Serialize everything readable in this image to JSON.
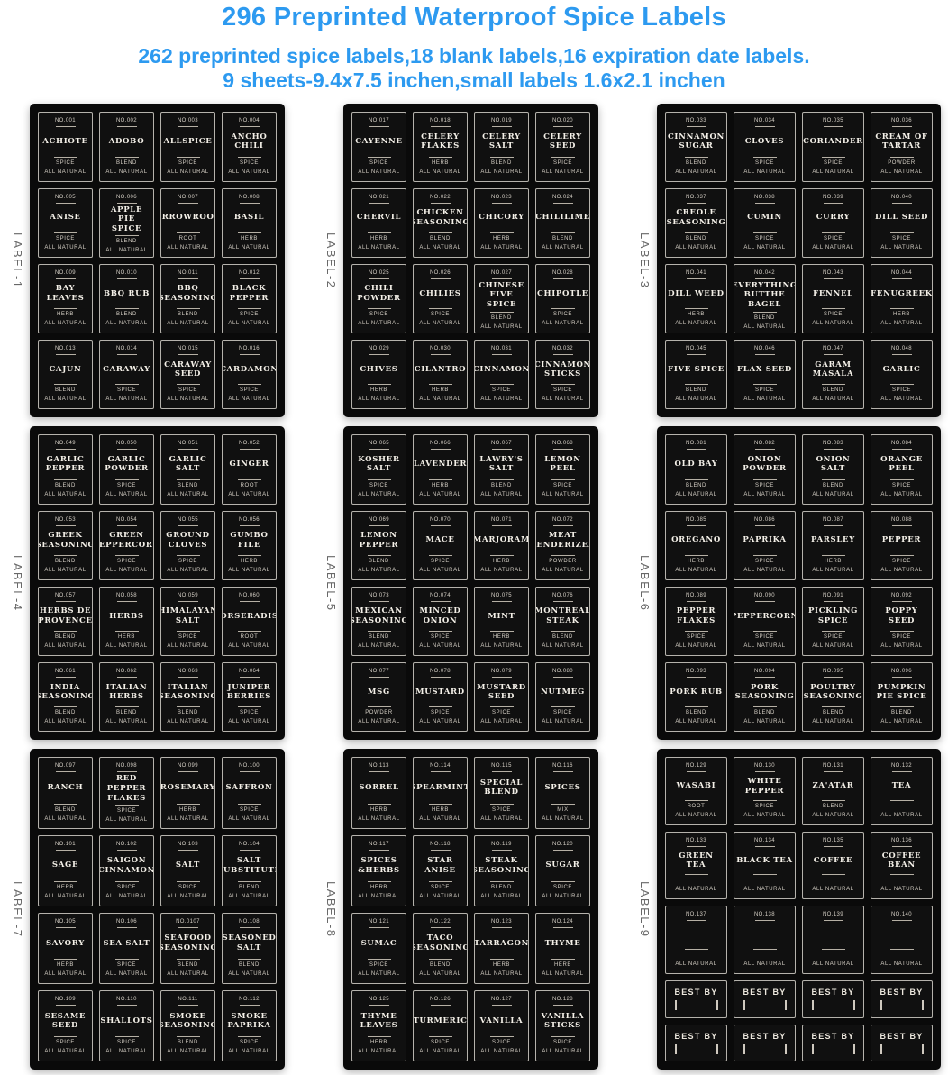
{
  "header": {
    "title": "296 Preprinted Waterproof Spice Labels",
    "subtitle1": "262 preprinted spice labels,18 blank labels,16 expiration date labels.",
    "subtitle2": "9 sheets-9.4x7.5 inchen,small labels 1.6x2.1 inchen"
  },
  "colors": {
    "title_blue": "#2d9af0",
    "sheet_black": "#0a0a0a",
    "label_text": "#f4f0e8"
  },
  "common": {
    "all_natural": "ALL NATURAL"
  },
  "sheets": [
    {
      "name": "LABEL-1",
      "labels": [
        {
          "no": "NO.001",
          "name": "ACHIOTE",
          "type": "SPICE"
        },
        {
          "no": "NO.002",
          "name": "ADOBO",
          "type": "BLEND"
        },
        {
          "no": "NO.003",
          "name": "ALLSPICE",
          "type": "SPICE"
        },
        {
          "no": "NO.004",
          "name": "ANCHO CHILI",
          "type": "SPICE"
        },
        {
          "no": "NO.005",
          "name": "ANISE",
          "type": "SPICE"
        },
        {
          "no": "NO.006",
          "name": "APPLE PIE SPICE",
          "type": "BLEND"
        },
        {
          "no": "NO.007",
          "name": "ARROWROOT",
          "type": "ROOT"
        },
        {
          "no": "NO.008",
          "name": "BASIL",
          "type": "HERB"
        },
        {
          "no": "NO.009",
          "name": "BAY LEAVES",
          "type": "HERB"
        },
        {
          "no": "NO.010",
          "name": "BBQ RUB",
          "type": "BLEND"
        },
        {
          "no": "NO.011",
          "name": "BBQ SEASONING",
          "type": "BLEND"
        },
        {
          "no": "NO.012",
          "name": "BLACK PEPPER",
          "type": "SPICE"
        },
        {
          "no": "NO.013",
          "name": "CAJUN",
          "type": "BLEND"
        },
        {
          "no": "NO.014",
          "name": "CARAWAY",
          "type": "SPICE"
        },
        {
          "no": "NO.015",
          "name": "CARAWAY SEED",
          "type": "SPICE"
        },
        {
          "no": "NO.016",
          "name": "CARDAMON",
          "type": "SPICE"
        }
      ]
    },
    {
      "name": "LABEL-2",
      "labels": [
        {
          "no": "NO.017",
          "name": "CAYENNE",
          "type": "SPICE"
        },
        {
          "no": "NO.018",
          "name": "CELERY FLAKES",
          "type": "HERB"
        },
        {
          "no": "NO.019",
          "name": "CELERY SALT",
          "type": "BLEND"
        },
        {
          "no": "NO.020",
          "name": "CELERY SEED",
          "type": "SPICE"
        },
        {
          "no": "NO.021",
          "name": "CHERVIL",
          "type": "HERB"
        },
        {
          "no": "NO.022",
          "name": "CHICKEN SEASONING",
          "type": "BLEND"
        },
        {
          "no": "NO.023",
          "name": "CHICORY",
          "type": "HERB"
        },
        {
          "no": "NO.024",
          "name": "CHILILIME",
          "type": "BLEND"
        },
        {
          "no": "NO.025",
          "name": "CHILI POWDER",
          "type": "SPICE"
        },
        {
          "no": "NO.026",
          "name": "CHILIES",
          "type": "SPICE"
        },
        {
          "no": "NO.027",
          "name": "CHINESE FIVE SPICE",
          "type": "BLEND"
        },
        {
          "no": "NO.028",
          "name": "CHIPOTLE",
          "type": "SPICE"
        },
        {
          "no": "NO.029",
          "name": "CHIVES",
          "type": "HERB"
        },
        {
          "no": "NO.030",
          "name": "CILANTRO",
          "type": "HERB"
        },
        {
          "no": "NO.031",
          "name": "CINNAMON",
          "type": "SPICE"
        },
        {
          "no": "NO.032",
          "name": "CINNAMON STICKS",
          "type": "SPICE"
        }
      ]
    },
    {
      "name": "LABEL-3",
      "labels": [
        {
          "no": "NO.033",
          "name": "CINNAMON SUGAR",
          "type": "BLEND"
        },
        {
          "no": "NO.034",
          "name": "CLOVES",
          "type": "SPICE"
        },
        {
          "no": "NO.035",
          "name": "CORIANDER",
          "type": "SPICE"
        },
        {
          "no": "NO.036",
          "name": "CREAM OF TARTAR",
          "type": "POWDER"
        },
        {
          "no": "NO.037",
          "name": "CREOLE SEASONING",
          "type": "BLEND"
        },
        {
          "no": "NO.038",
          "name": "CUMIN",
          "type": "SPICE"
        },
        {
          "no": "NO.039",
          "name": "CURRY",
          "type": "SPICE"
        },
        {
          "no": "NO.040",
          "name": "DILL SEED",
          "type": "SPICE"
        },
        {
          "no": "NO.041",
          "name": "DILL WEED",
          "type": "HERB"
        },
        {
          "no": "NO.042",
          "name": "EVERYTHING BUTTHE BAGEL",
          "type": "BLEND"
        },
        {
          "no": "NO.043",
          "name": "FENNEL",
          "type": "SPICE"
        },
        {
          "no": "NO.044",
          "name": "FENUGREEK",
          "type": "HERB"
        },
        {
          "no": "NO.045",
          "name": "FIVE SPICE",
          "type": "BLEND"
        },
        {
          "no": "NO.046",
          "name": "FLAX SEED",
          "type": "SPICE"
        },
        {
          "no": "NO.047",
          "name": "GARAM MASALA",
          "type": "BLEND"
        },
        {
          "no": "NO.048",
          "name": "GARLIC",
          "type": "SPICE"
        }
      ]
    },
    {
      "name": "LABEL-4",
      "labels": [
        {
          "no": "NO.049",
          "name": "GARLIC PEPPER",
          "type": "BLEND"
        },
        {
          "no": "NO.050",
          "name": "GARLIC POWDER",
          "type": "SPICE"
        },
        {
          "no": "NO.051",
          "name": "GARLIC SALT",
          "type": "BLEND"
        },
        {
          "no": "NO.052",
          "name": "GINGER",
          "type": "ROOT"
        },
        {
          "no": "NO.053",
          "name": "GREEK SEASONING",
          "type": "BLEND"
        },
        {
          "no": "NO.054",
          "name": "GREEN PEPPERCORN",
          "type": "SPICE"
        },
        {
          "no": "NO.055",
          "name": "GROUND CLOVES",
          "type": "SPICE"
        },
        {
          "no": "NO.056",
          "name": "GUMBO FILE",
          "type": "HERB"
        },
        {
          "no": "NO.057",
          "name": "HERBS DE PROVENCE",
          "type": "BLEND"
        },
        {
          "no": "NO.058",
          "name": "HERBS",
          "type": "HERB"
        },
        {
          "no": "NO.059",
          "name": "HIMALAYAN SALT",
          "type": "SPICE"
        },
        {
          "no": "NO.060",
          "name": "HORSERADISH",
          "type": "ROOT"
        },
        {
          "no": "NO.061",
          "name": "INDIA SEASONING",
          "type": "BLEND"
        },
        {
          "no": "NO.062",
          "name": "ITALIAN HERBS",
          "type": "BLEND"
        },
        {
          "no": "NO.063",
          "name": "ITALIAN SEASONING",
          "type": "BLEND"
        },
        {
          "no": "NO.064",
          "name": "JUNIPER BERRIES",
          "type": "SPICE"
        }
      ]
    },
    {
      "name": "LABEL-5",
      "labels": [
        {
          "no": "NO.065",
          "name": "KOSHER SALT",
          "type": "SPICE"
        },
        {
          "no": "NO.066",
          "name": "LAVENDER",
          "type": "HERB"
        },
        {
          "no": "NO.067",
          "name": "LAWRY'S SALT",
          "type": "BLEND"
        },
        {
          "no": "NO.068",
          "name": "LEMON PEEL",
          "type": "SPICE"
        },
        {
          "no": "NO.069",
          "name": "LEMON PEPPER",
          "type": "BLEND"
        },
        {
          "no": "NO.070",
          "name": "MACE",
          "type": "SPICE"
        },
        {
          "no": "NO.071",
          "name": "MARJORAM",
          "type": "HERB"
        },
        {
          "no": "NO.072",
          "name": "MEAT TENDERIZER",
          "type": "POWDER"
        },
        {
          "no": "NO.073",
          "name": "MEXICAN SEASONING",
          "type": "BLEND"
        },
        {
          "no": "NO.074",
          "name": "MINCED ONION",
          "type": "SPICE"
        },
        {
          "no": "NO.075",
          "name": "MINT",
          "type": "HERB"
        },
        {
          "no": "NO.076",
          "name": "MONTREAL STEAK",
          "type": "BLEND"
        },
        {
          "no": "NO.077",
          "name": "MSG",
          "type": "POWDER"
        },
        {
          "no": "NO.078",
          "name": "MUSTARD",
          "type": "SPICE"
        },
        {
          "no": "NO.079",
          "name": "MUSTARD SEED",
          "type": "SPICE"
        },
        {
          "no": "NO.080",
          "name": "NUTMEG",
          "type": "SPICE"
        }
      ]
    },
    {
      "name": "LABEL-6",
      "labels": [
        {
          "no": "NO.081",
          "name": "OLD BAY",
          "type": "BLEND"
        },
        {
          "no": "NO.082",
          "name": "ONION POWDER",
          "type": "SPICE"
        },
        {
          "no": "NO.083",
          "name": "ONION SALT",
          "type": "BLEND"
        },
        {
          "no": "NO.084",
          "name": "ORANGE PEEL",
          "type": "SPICE"
        },
        {
          "no": "NO.085",
          "name": "OREGANO",
          "type": "HERB"
        },
        {
          "no": "NO.086",
          "name": "PAPRIKA",
          "type": "SPICE"
        },
        {
          "no": "NO.087",
          "name": "PARSLEY",
          "type": "HERB"
        },
        {
          "no": "NO.088",
          "name": "PEPPER",
          "type": "SPICE"
        },
        {
          "no": "NO.089",
          "name": "PEPPER FLAKES",
          "type": "SPICE"
        },
        {
          "no": "NO.090",
          "name": "PEPPERCORN",
          "type": "SPICE"
        },
        {
          "no": "NO.091",
          "name": "PICKLING SPICE",
          "type": "SPICE"
        },
        {
          "no": "NO.092",
          "name": "POPPY SEED",
          "type": "SPICE"
        },
        {
          "no": "NO.093",
          "name": "PORK RUB",
          "type": "BLEND"
        },
        {
          "no": "NO.094",
          "name": "PORK SEASONING",
          "type": "BLEND"
        },
        {
          "no": "NO.095",
          "name": "POULTRY SEASONING",
          "type": "BLEND"
        },
        {
          "no": "NO.096",
          "name": "PUMPKIN PIE SPICE",
          "type": "BLEND"
        }
      ]
    },
    {
      "name": "LABEL-7",
      "labels": [
        {
          "no": "NO.097",
          "name": "RANCH",
          "type": "BLEND"
        },
        {
          "no": "NO.098",
          "name": "RED PEPPER FLAKES",
          "type": "SPICE"
        },
        {
          "no": "NO.099",
          "name": "ROSEMARY",
          "type": "HERB"
        },
        {
          "no": "NO.100",
          "name": "SAFFRON",
          "type": "SPICE"
        },
        {
          "no": "NO.101",
          "name": "SAGE",
          "type": "HERB"
        },
        {
          "no": "NO.102",
          "name": "SAIGON CINNAMON",
          "type": "SPICE"
        },
        {
          "no": "NO.103",
          "name": "SALT",
          "type": "SPICE"
        },
        {
          "no": "NO.104",
          "name": "SALT SUBSTITUTE",
          "type": "BLEND"
        },
        {
          "no": "NO.105",
          "name": "SAVORY",
          "type": "HERB"
        },
        {
          "no": "NO.106",
          "name": "SEA SALT",
          "type": "SPICE"
        },
        {
          "no": "NO.0107",
          "name": "SEAFOOD SEASONING",
          "type": "BLEND"
        },
        {
          "no": "NO.108",
          "name": "SEASONED SALT",
          "type": "BLEND"
        },
        {
          "no": "NO.109",
          "name": "SESAME SEED",
          "type": "SPICE"
        },
        {
          "no": "NO.110",
          "name": "SHALLOTS",
          "type": "SPICE"
        },
        {
          "no": "NO.111",
          "name": "SMOKE SEASONING",
          "type": "BLEND"
        },
        {
          "no": "NO.112",
          "name": "SMOKE PAPRIKA",
          "type": "SPICE"
        }
      ]
    },
    {
      "name": "LABEL-8",
      "labels": [
        {
          "no": "NO.113",
          "name": "SORREL",
          "type": "HERB"
        },
        {
          "no": "NO.114",
          "name": "SPEARMINT",
          "type": "HERB"
        },
        {
          "no": "NO.115",
          "name": "SPECIAL BLEND",
          "type": "SPICE"
        },
        {
          "no": "NO.116",
          "name": "SPICES",
          "type": "MIX"
        },
        {
          "no": "NO.117",
          "name": "SPICES &HERBS",
          "type": "HERB"
        },
        {
          "no": "NO.118",
          "name": "STAR ANISE",
          "type": "SPICE"
        },
        {
          "no": "NO.119",
          "name": "STEAK SEASONING",
          "type": "BLEND"
        },
        {
          "no": "NO.120",
          "name": "SUGAR",
          "type": "SPICE"
        },
        {
          "no": "NO.121",
          "name": "SUMAC",
          "type": "SPICE"
        },
        {
          "no": "NO.122",
          "name": "TACO SEASONING",
          "type": "BLEND"
        },
        {
          "no": "NO.123",
          "name": "TARRAGON",
          "type": "HERB"
        },
        {
          "no": "NO.124",
          "name": "THYME",
          "type": "HERB"
        },
        {
          "no": "NO.125",
          "name": "THYME LEAVES",
          "type": "HERB"
        },
        {
          "no": "NO.126",
          "name": "TURMERIC",
          "type": "SPICE"
        },
        {
          "no": "NO.127",
          "name": "VANILLA",
          "type": "SPICE"
        },
        {
          "no": "NO.128",
          "name": "VANILLA STICKS",
          "type": "SPICE"
        }
      ]
    },
    {
      "name": "LABEL-9",
      "labels": [
        {
          "no": "NO.129",
          "name": "WASABI",
          "type": "ROOT"
        },
        {
          "no": "NO.130",
          "name": "WHITE PEPPER",
          "type": "SPICE"
        },
        {
          "no": "NO.131",
          "name": "ZA'ATAR",
          "type": "BLEND"
        },
        {
          "no": "NO.132",
          "name": "TEA",
          "type": ""
        },
        {
          "no": "NO.133",
          "name": "GREEN TEA",
          "type": ""
        },
        {
          "no": "NO.134",
          "name": "BLACK TEA",
          "type": ""
        },
        {
          "no": "NO.135",
          "name": "COFFEE",
          "type": ""
        },
        {
          "no": "NO.136",
          "name": "COFFEE BEAN",
          "type": ""
        },
        {
          "no": "NO.137",
          "name": "",
          "type": ""
        },
        {
          "no": "NO.138",
          "name": "",
          "type": ""
        },
        {
          "no": "NO.139",
          "name": "",
          "type": ""
        },
        {
          "no": "NO.140",
          "name": "",
          "type": ""
        }
      ],
      "best_by": {
        "text": "BEST BY",
        "count": 8
      }
    }
  ]
}
